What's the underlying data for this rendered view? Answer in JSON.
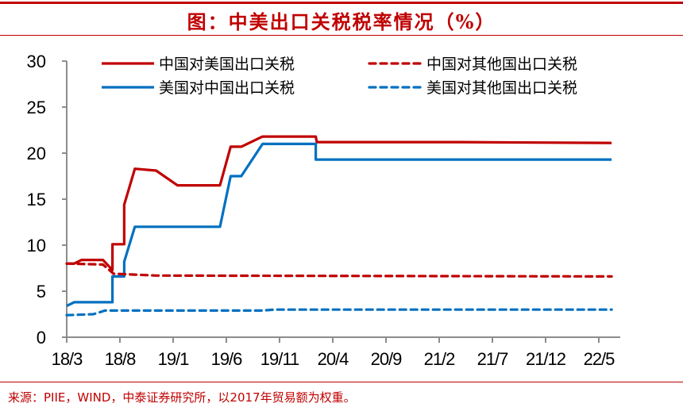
{
  "header": {
    "title": "图：中美出口关税税率情况（%）"
  },
  "footer": {
    "source": "来源：PIIE，WIND，中泰证券研究所，以2017年贸易额为权重。"
  },
  "colors": {
    "accent": "#c00000",
    "red_series": "#c00000",
    "blue_series": "#0070c0",
    "axis": "#8c8c8c"
  },
  "chart_data": {
    "type": "line",
    "title": "图：中美出口关税税率情况（%）",
    "xlabel": "",
    "ylabel": "",
    "ylim": [
      0,
      30
    ],
    "yticks": [
      0,
      5,
      10,
      15,
      20,
      25,
      30
    ],
    "xtick_labels": [
      "18/3",
      "18/8",
      "19/1",
      "19/6",
      "19/11",
      "20/4",
      "20/9",
      "21/2",
      "21/7",
      "21/12",
      "22/5"
    ],
    "x_unit": "months since 2018/3",
    "grid": false,
    "legend_position": "top-inside, 2 columns",
    "series": [
      {
        "name": "中国对美国出口关税",
        "color": "#c00000",
        "dash": "solid",
        "points": [
          [
            0,
            8.0
          ],
          [
            0.7,
            8.0
          ],
          [
            1.4,
            8.4
          ],
          [
            3.4,
            8.4
          ],
          [
            4.3,
            7.3
          ],
          [
            4.3,
            10.1
          ],
          [
            5.4,
            10.1
          ],
          [
            5.4,
            14.4
          ],
          [
            6.4,
            18.3
          ],
          [
            8.4,
            18.1
          ],
          [
            10.4,
            16.5
          ],
          [
            14.4,
            16.5
          ],
          [
            15.4,
            20.7
          ],
          [
            16.4,
            20.7
          ],
          [
            18.4,
            21.8
          ],
          [
            23.4,
            21.8
          ],
          [
            23.5,
            21.2
          ],
          [
            37.0,
            21.2
          ],
          [
            51.2,
            21.1
          ]
        ]
      },
      {
        "name": "美国对中国出口关税",
        "color": "#0070c0",
        "dash": "solid",
        "points": [
          [
            0,
            3.4
          ],
          [
            0.7,
            3.8
          ],
          [
            4.3,
            3.8
          ],
          [
            4.3,
            6.6
          ],
          [
            5.4,
            6.6
          ],
          [
            5.4,
            8.2
          ],
          [
            6.4,
            12.0
          ],
          [
            14.4,
            12.0
          ],
          [
            15.4,
            17.5
          ],
          [
            16.4,
            17.5
          ],
          [
            18.4,
            21.0
          ],
          [
            23.4,
            21.0
          ],
          [
            23.4,
            19.3
          ],
          [
            51.2,
            19.3
          ]
        ]
      },
      {
        "name": "中国对其他国出口关税",
        "color": "#c00000",
        "dash": "dashed",
        "points": [
          [
            0,
            8.0
          ],
          [
            3.4,
            7.9
          ],
          [
            4.4,
            6.9
          ],
          [
            6.4,
            6.8
          ],
          [
            8.4,
            6.7
          ],
          [
            51.2,
            6.6
          ]
        ]
      },
      {
        "name": "美国对其他国出口关税",
        "color": "#0070c0",
        "dash": "dashed",
        "points": [
          [
            0,
            2.4
          ],
          [
            2.5,
            2.5
          ],
          [
            3.6,
            2.9
          ],
          [
            18.4,
            2.9
          ],
          [
            19.5,
            3.0
          ],
          [
            51.2,
            3.0
          ]
        ]
      }
    ]
  },
  "legend": {
    "items": [
      {
        "label": "中国对美国出口关税",
        "color": "#c00000",
        "dash": "solid"
      },
      {
        "label": "中国对其他国出口关税",
        "color": "#c00000",
        "dash": "dashed"
      },
      {
        "label": "美国对中国出口关税",
        "color": "#0070c0",
        "dash": "solid"
      },
      {
        "label": "美国对其他国出口关税",
        "color": "#0070c0",
        "dash": "dashed"
      }
    ]
  }
}
